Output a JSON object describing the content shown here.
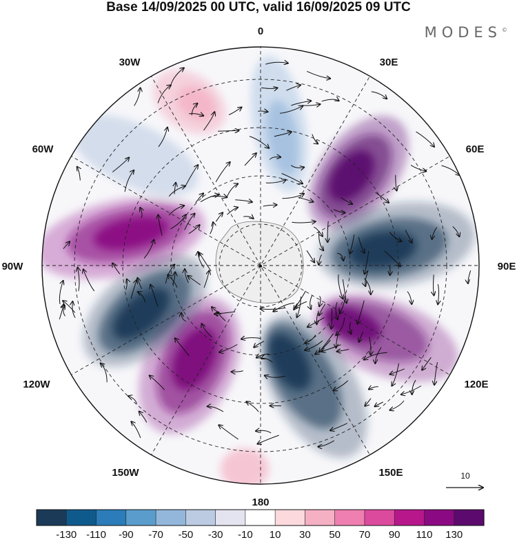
{
  "title": "Base 14/09/2025 00 UTC, valid 16/09/2025 09 UTC",
  "brand": "MODES",
  "brand_mark": "©",
  "longitude_labels": {
    "top": "0",
    "top_left": "30W",
    "top_right": "30E",
    "upper_left": "60W",
    "upper_right": "60E",
    "left": "90W",
    "right": "90E",
    "lower_left": "120W",
    "lower_right": "120E",
    "bottom_left": "150W",
    "bottom_right": "150E",
    "bottom": "180"
  },
  "vector_reference": {
    "label": "10"
  },
  "colorbar": {
    "colors": [
      "#1b3a58",
      "#0f5a8c",
      "#2b7cb8",
      "#5a9dcc",
      "#92b7da",
      "#bccbe2",
      "#e4e4f1",
      "#ffffff",
      "#fbd9dd",
      "#f5b0c3",
      "#ef7fb0",
      "#dc4a9e",
      "#b7178b",
      "#8b0a83",
      "#5c0a6e"
    ],
    "ticks": [
      "-130",
      "-110",
      "-90",
      "-70",
      "-50",
      "-30",
      "-10",
      "10",
      "30",
      "50",
      "70",
      "90",
      "110",
      "130"
    ]
  },
  "lobes": [
    {
      "name": "lobe-atl-north-pink",
      "color": "#f3b3c5"
    },
    {
      "name": "lobe-0-blue",
      "color": "#9dbcdd"
    },
    {
      "name": "lobe-45e-purple",
      "color": "#5c0a6e"
    },
    {
      "name": "lobe-90e-blue",
      "color": "#1b3a58"
    },
    {
      "name": "lobe-110e-purple",
      "color": "#6f0b78"
    },
    {
      "name": "lobe-160e-blue",
      "color": "#1b3a58"
    },
    {
      "name": "lobe-150w-magenta",
      "color": "#7e0a7d"
    },
    {
      "name": "lobe-115w-blue",
      "color": "#1b3a58"
    },
    {
      "name": "lobe-80w-magenta",
      "color": "#8b0a83"
    },
    {
      "name": "lobe-50w-lightblue",
      "color": "#bccbe2"
    },
    {
      "name": "lobe-180-lightpink",
      "color": "#f5b0c3"
    }
  ]
}
